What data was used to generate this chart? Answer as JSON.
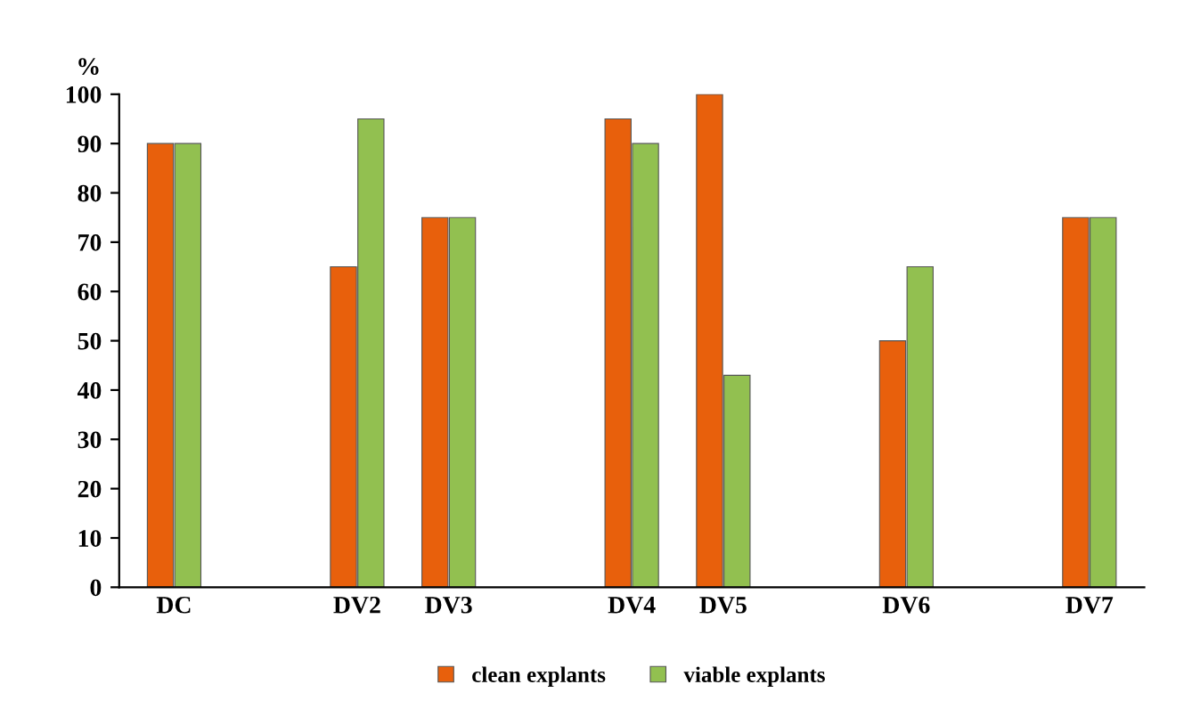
{
  "chart_data": {
    "type": "bar",
    "ylabel": "%",
    "categories": [
      "DC",
      null,
      "DV2",
      "DV3",
      null,
      "DV4",
      "DV5",
      null,
      "DV6",
      null,
      "DV7"
    ],
    "series": [
      {
        "name": "clean explants",
        "color": "#e8600c",
        "values": [
          90,
          null,
          65,
          75,
          null,
          95,
          100,
          null,
          50,
          null,
          75
        ]
      },
      {
        "name": "viable explants",
        "color": "#92c050",
        "values": [
          90,
          null,
          95,
          75,
          null,
          90,
          43,
          null,
          65,
          null,
          75
        ]
      }
    ],
    "ylim": [
      0,
      100
    ],
    "yticks": [
      0,
      10,
      20,
      30,
      40,
      50,
      60,
      70,
      80,
      90,
      100
    ],
    "grid": false,
    "legend": "bottom"
  }
}
